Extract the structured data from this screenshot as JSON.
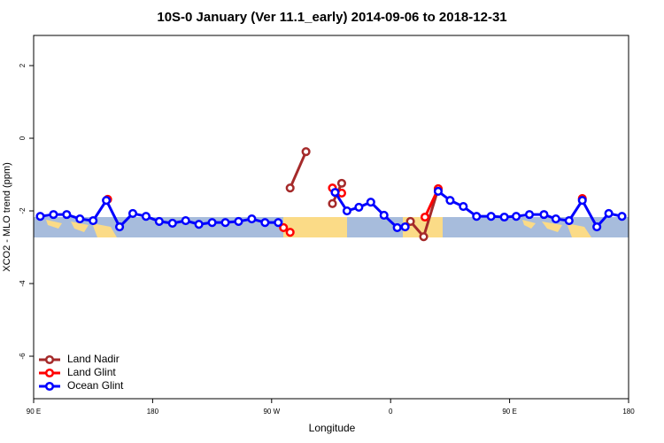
{
  "chart_data": {
    "type": "line",
    "title": "10S-0 January (Ver 11.1_early)   2014-09-06 to 2018-12-31",
    "x_label": "Longitude",
    "y_label": "XCO2 - MLO trend (ppm)",
    "xlim": [
      90,
      540
    ],
    "xticks": [
      {
        "value": 90,
        "label": "90 E"
      },
      180,
      {
        "value": 270,
        "label": "90 W"
      },
      {
        "value": 360,
        "label": "0"
      },
      {
        "value": 450,
        "label": "90 E"
      },
      {
        "value": 540,
        "label": "180"
      }
    ],
    "ylim": [
      -7.17,
      2.83
    ],
    "yticks": [
      -6,
      -4,
      -2,
      0,
      2
    ],
    "legend": "bottom-left",
    "series": [
      {
        "name": "Land Nadir",
        "color": "#a52a2a",
        "x": [
          284,
          296,
          305,
          316,
          323,
          350,
          375,
          385,
          396
        ],
        "values": [
          -1.37,
          -0.37,
          null,
          -1.8,
          -1.24,
          null,
          -2.29,
          -2.71,
          -1.39
        ]
      },
      {
        "name": "Land Glint",
        "color": "#ff0000",
        "x": [
          146,
          200,
          279,
          284,
          300,
          316,
          323,
          350,
          386,
          396,
          450,
          505
        ],
        "values": [
          -1.68,
          null,
          -2.46,
          -2.59,
          null,
          -1.37,
          -1.51,
          null,
          -2.17,
          -1.39,
          null,
          -1.66
        ]
      },
      {
        "name": "Ocean Glint",
        "color": "#0000ff",
        "x": [
          95,
          105,
          115,
          125,
          135,
          145,
          155,
          165,
          175,
          185,
          195,
          205,
          215,
          225,
          235,
          245,
          255,
          265,
          275,
          295,
          318,
          327,
          336,
          345,
          355,
          365,
          371,
          383,
          396,
          405,
          415,
          425,
          436,
          446,
          455,
          465,
          476,
          485,
          495,
          505,
          516,
          525,
          535
        ],
        "values": [
          -2.15,
          -2.1,
          -2.1,
          -2.22,
          -2.27,
          -1.71,
          -2.44,
          -2.07,
          -2.15,
          -2.29,
          -2.34,
          -2.27,
          -2.37,
          -2.32,
          -2.32,
          -2.29,
          -2.22,
          -2.32,
          -2.32,
          null,
          -1.49,
          -2.0,
          -1.9,
          -1.76,
          -2.12,
          -2.46,
          -2.44,
          null,
          -1.46,
          -1.71,
          -1.88,
          -2.15,
          -2.15,
          -2.17,
          -2.15,
          -2.1,
          -2.1,
          -2.22,
          -2.27,
          -1.71,
          -2.44,
          -2.07,
          -2.15
        ]
      }
    ]
  }
}
